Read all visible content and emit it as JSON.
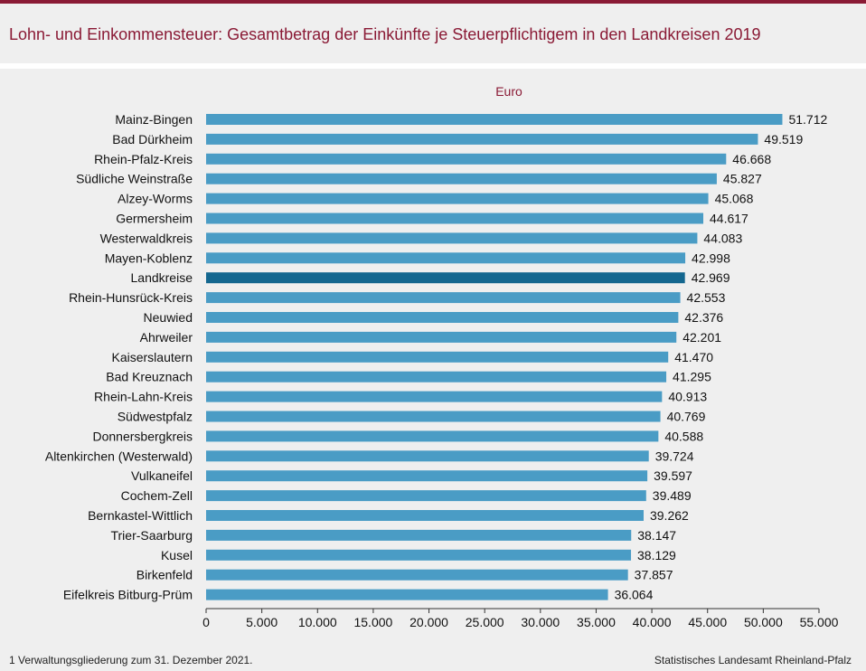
{
  "title": "Lohn- und Einkommensteuer: Gesamtbetrag der Einkünfte je Steuerpflichtigem in den Landkreisen 2019",
  "unit_label": "Euro",
  "footnote": "1 Verwaltungsgliederung  zum 31. Dezember 2021.",
  "source": "Statistisches Landesamt Rheinland-Pfalz",
  "colors": {
    "bar": "#4a9cc5",
    "bar_highlight": "#14678f",
    "title": "#8a1a35"
  },
  "chart_data": {
    "type": "bar",
    "orientation": "horizontal",
    "title": "",
    "xlabel": "Euro",
    "ylabel": "",
    "xlim": [
      0,
      55000
    ],
    "xticks": [
      0,
      5000,
      10000,
      15000,
      20000,
      25000,
      30000,
      35000,
      40000,
      45000,
      50000,
      55000
    ],
    "xtick_labels": [
      "0",
      "5.000",
      "10.000",
      "15.000",
      "20.000",
      "25.000",
      "30.000",
      "35.000",
      "40.000",
      "45.000",
      "50.000",
      "55.000"
    ],
    "grid": false,
    "highlight": "Landkreise",
    "categories": [
      "Mainz-Bingen",
      "Bad Dürkheim",
      "Rhein-Pfalz-Kreis",
      "Südliche Weinstraße",
      "Alzey-Worms",
      "Germersheim",
      "Westerwaldkreis",
      "Mayen-Koblenz",
      "Landkreise",
      "Rhein-Hunsrück-Kreis",
      "Neuwied",
      "Ahrweiler",
      "Kaiserslautern",
      "Bad Kreuznach",
      "Rhein-Lahn-Kreis",
      "Südwestpfalz",
      "Donnersbergkreis",
      "Altenkirchen (Westerwald)",
      "Vulkaneifel",
      "Cochem-Zell",
      "Bernkastel-Wittlich",
      "Trier-Saarburg",
      "Kusel",
      "Birkenfeld",
      "Eifelkreis Bitburg-Prüm"
    ],
    "values": [
      51712,
      49519,
      46668,
      45827,
      45068,
      44617,
      44083,
      42998,
      42969,
      42553,
      42376,
      42201,
      41470,
      41295,
      40913,
      40769,
      40588,
      39724,
      39597,
      39489,
      39262,
      38147,
      38129,
      37857,
      36064
    ],
    "value_labels": [
      "51.712",
      "49.519",
      "46.668",
      "45.827",
      "45.068",
      "44.617",
      "44.083",
      "42.998",
      "42.969",
      "42.553",
      "42.376",
      "42.201",
      "41.470",
      "41.295",
      "40.913",
      "40.769",
      "40.588",
      "39.724",
      "39.597",
      "39.489",
      "39.262",
      "38.147",
      "38.129",
      "37.857",
      "36.064"
    ]
  }
}
